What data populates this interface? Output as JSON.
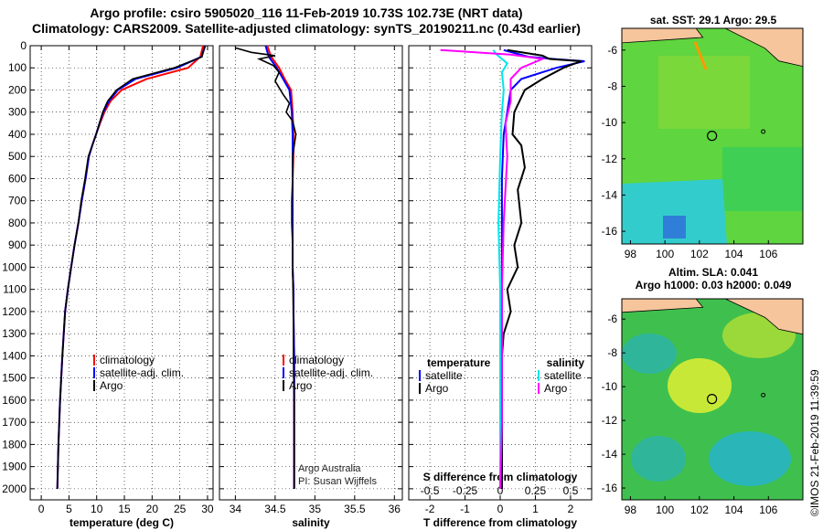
{
  "title_line1": "Argo profile: csiro 5905020_116 11-Feb-2019 10.73S 102.73E (NRT data)",
  "title_line2": "Climatology: CARS2009. Satellite-adjusted climatology: synTS_20190211.nc (0.43d earlier)",
  "sst_panel_title": "sat. SST: 29.1 Argo: 29.5",
  "sla_panel_title_line1": "Altim. SLA: 0.041",
  "sla_panel_title_line2": "Argo h1000: 0.03 h2000: 0.049",
  "imos_credit": "©IMOS 21-Feb-2019 11:39:59",
  "argo_credit_line1": "Argo Australia",
  "argo_credit_line2": "PI: Susan Wijffels",
  "depth_ticks": [
    "0",
    "100",
    "200",
    "300",
    "400",
    "500",
    "600",
    "700",
    "800",
    "900",
    "1000",
    "1100",
    "1200",
    "1300",
    "1400",
    "1500",
    "1600",
    "1700",
    "1800",
    "1900",
    "2000"
  ],
  "colors": {
    "climatology": "#ff0000",
    "satellite": "#0000ff",
    "argo": "#000000",
    "sat_t_diff": "#0000ff",
    "sat_s_diff": "#00e5ee",
    "argo_s_diff": "#ff00ff"
  },
  "chart_data": [
    {
      "type": "line",
      "xlabel": "temperature (deg C)",
      "xlim": [
        -2,
        31
      ],
      "ylim": [
        2050,
        0
      ],
      "xticks": [
        "0",
        "5",
        "10",
        "15",
        "20",
        "25",
        "30"
      ],
      "legend": [
        "climatology",
        "satellite-adj. clim.",
        "Argo"
      ],
      "series": [
        {
          "name": "climatology",
          "x": [
            29.2,
            28.7,
            26.5,
            19.0,
            14.5,
            12.5,
            11.4,
            10.6,
            9.9,
            9.2,
            8.6,
            8.0,
            7.3,
            6.7,
            6.0,
            5.4,
            4.8,
            4.3,
            3.8,
            3.4,
            3.1,
            2.9
          ],
          "y": [
            0,
            50,
            100,
            150,
            200,
            250,
            300,
            350,
            400,
            450,
            500,
            600,
            700,
            800,
            900,
            1000,
            1100,
            1200,
            1400,
            1600,
            1800,
            2000
          ]
        },
        {
          "name": "satellite-adj. clim.",
          "x": [
            29.6,
            28.9,
            24.5,
            17.0,
            13.8,
            12.2,
            11.2,
            10.5,
            9.9,
            9.2,
            8.6,
            8.0,
            7.3,
            6.7,
            6.0,
            5.4,
            4.8,
            4.3,
            3.8,
            3.4,
            3.1,
            2.9
          ],
          "y": [
            0,
            50,
            100,
            150,
            200,
            250,
            300,
            350,
            400,
            450,
            500,
            600,
            700,
            800,
            900,
            1000,
            1100,
            1200,
            1400,
            1600,
            1800,
            2000
          ]
        },
        {
          "name": "Argo",
          "x": [
            29.5,
            29.0,
            24.0,
            16.5,
            13.6,
            12.0,
            11.1,
            10.5,
            9.9,
            9.2,
            8.5,
            7.9,
            7.2,
            6.7,
            6.0,
            5.4,
            4.8,
            4.3,
            3.8,
            3.4,
            3.1,
            2.9
          ],
          "y": [
            0,
            50,
            100,
            150,
            200,
            250,
            300,
            350,
            400,
            450,
            500,
            600,
            700,
            800,
            900,
            1000,
            1100,
            1200,
            1400,
            1600,
            1800,
            2000
          ]
        }
      ]
    },
    {
      "type": "line",
      "xlabel": "salinity",
      "xlim": [
        33.8,
        36.1
      ],
      "ylim": [
        2050,
        0
      ],
      "xticks": [
        "34",
        "34.5",
        "35",
        "35.5",
        "36"
      ],
      "legend": [
        "climatology",
        "satellite-adj. clim.",
        "Argo"
      ],
      "series": [
        {
          "name": "climatology",
          "x": [
            34.4,
            34.45,
            34.55,
            34.62,
            34.7,
            34.72,
            34.73,
            34.73,
            34.72,
            34.72,
            34.72,
            34.72,
            34.72,
            34.73,
            34.73,
            34.74,
            34.74,
            34.74,
            34.74,
            34.74
          ],
          "y": [
            0,
            50,
            100,
            150,
            200,
            300,
            400,
            500,
            600,
            700,
            800,
            900,
            1000,
            1100,
            1200,
            1400,
            1600,
            1800,
            1900,
            2000
          ]
        },
        {
          "name": "satellite-adj. clim.",
          "x": [
            34.38,
            34.42,
            34.52,
            34.6,
            34.68,
            34.71,
            34.72,
            34.72,
            34.72,
            34.72,
            34.72,
            34.72,
            34.72,
            34.73,
            34.73,
            34.74,
            34.74,
            34.74,
            34.74,
            34.74
          ],
          "y": [
            0,
            50,
            100,
            150,
            200,
            300,
            400,
            500,
            600,
            700,
            800,
            900,
            1000,
            1100,
            1200,
            1400,
            1600,
            1800,
            1900,
            2000
          ]
        },
        {
          "name": "Argo",
          "x": [
            34.0,
            34.2,
            34.5,
            34.3,
            34.48,
            34.55,
            34.5,
            34.6,
            34.68,
            34.64,
            34.72,
            34.76,
            34.72,
            34.72,
            34.71,
            34.71,
            34.72,
            34.72,
            34.73,
            34.73,
            34.74,
            34.74,
            34.74,
            34.74
          ],
          "y": [
            10,
            30,
            45,
            60,
            90,
            120,
            160,
            220,
            260,
            300,
            340,
            400,
            500,
            600,
            700,
            800,
            900,
            1000,
            1200,
            1400,
            1600,
            1800,
            1900,
            2000
          ]
        }
      ]
    },
    {
      "type": "line",
      "xlabel": "T difference from climatology",
      "xlabel_top": "S difference from climatology",
      "xlim": [
        -2.6,
        2.6
      ],
      "ylim": [
        2050,
        0
      ],
      "xticks": [
        "-2",
        "-1",
        "0",
        "1",
        "2"
      ],
      "xticks_top": [
        "-0.5",
        "-0.25",
        "0",
        "0.25",
        "0.5"
      ],
      "legend_title_left": "temperature",
      "legend_title_right": "salinity",
      "legend_left": [
        "satellite",
        "Argo"
      ],
      "legend_right": [
        "satellite",
        "Argo"
      ],
      "series": [
        {
          "name": "satellite",
          "x": [
            0.1,
            0.8,
            1.5,
            2.4,
            1.6,
            0.6,
            0.3,
            0.2,
            0.1,
            0.05,
            0.05,
            0.05,
            0.05,
            0.05,
            0.05,
            0.05,
            0.05
          ],
          "y": [
            20,
            50,
            60,
            70,
            100,
            150,
            200,
            300,
            400,
            600,
            800,
            1000,
            1200,
            1400,
            1600,
            1800,
            2000
          ]
        },
        {
          "name": "Argo",
          "x": [
            0.2,
            1.2,
            1.4,
            2.3,
            1.8,
            1.2,
            0.7,
            0.4,
            0.35,
            0.6,
            0.7,
            0.5,
            0.6,
            0.4,
            0.5,
            0.2,
            0.3,
            0.1,
            0.05,
            0.05,
            0.05,
            0.05
          ],
          "y": [
            20,
            45,
            60,
            70,
            100,
            150,
            200,
            300,
            400,
            450,
            550,
            650,
            800,
            900,
            1000,
            1100,
            1200,
            1300,
            1400,
            1600,
            1800,
            2000
          ]
        },
        {
          "name": "satellite",
          "x": [
            -0.2,
            -0.1,
            0.2,
            0.05,
            0.1,
            0.05,
            0.0,
            -0.05,
            0.0,
            0.0,
            0.0,
            0.0,
            0.0
          ],
          "y": [
            20,
            40,
            80,
            120,
            200,
            300,
            500,
            800,
            1100,
            1400,
            1700,
            1900,
            2000
          ]
        },
        {
          "name": "Argo",
          "x": [
            -1.7,
            0.3,
            1.2,
            0.6,
            0.3,
            0.3,
            0.15,
            0.2,
            0.1,
            0.05,
            0.05,
            0.05,
            0.0
          ],
          "y": [
            20,
            40,
            60,
            100,
            150,
            250,
            350,
            500,
            800,
            1100,
            1400,
            1700,
            2000
          ]
        }
      ]
    },
    {
      "type": "heatmap",
      "title": "sat. SST: 29.1 Argo: 29.5",
      "xlim": [
        97.5,
        108
      ],
      "ylim": [
        -16.7,
        -4.8
      ],
      "xticks": [
        "98",
        "100",
        "102",
        "104",
        "106"
      ],
      "yticks": [
        "-6",
        "-8",
        "-10",
        "-12",
        "-14",
        "-16"
      ],
      "argo_position": [
        102.73,
        -10.73
      ]
    },
    {
      "type": "heatmap",
      "title": "Altim. SLA: 0.041",
      "xlim": [
        97.5,
        108
      ],
      "ylim": [
        -16.7,
        -4.8
      ],
      "xticks": [
        "98",
        "100",
        "102",
        "104",
        "106"
      ],
      "yticks": [
        "-6",
        "-8",
        "-10",
        "-12",
        "-14",
        "-16"
      ],
      "argo_position": [
        102.73,
        -10.73
      ]
    }
  ]
}
